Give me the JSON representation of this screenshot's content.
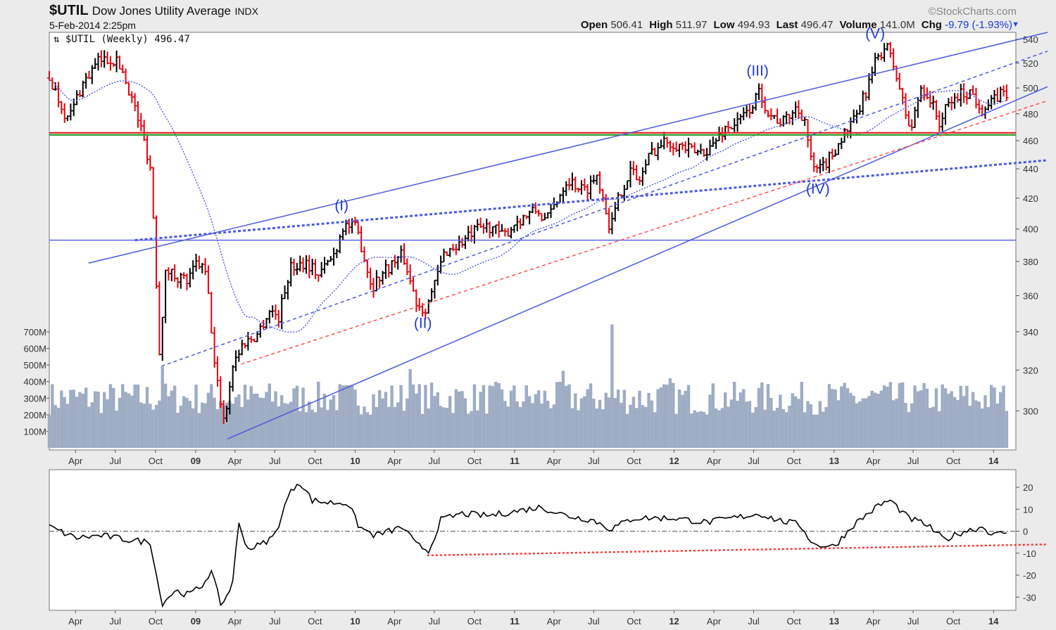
{
  "header": {
    "symbol": "$UTIL",
    "name": "Dow Jones Utility Average",
    "exchange": "INDX",
    "datetime": "5-Feb-2014 2:25pm",
    "brand": "©StockCharts.com",
    "open_label": "Open",
    "open": "506.41",
    "high_label": "High",
    "high": "511.97",
    "low_label": "Low",
    "low": "494.93",
    "last_label": "Last",
    "last": "496.47",
    "volume_label": "Volume",
    "volume": "141.0M",
    "chg_label": "Chg",
    "chg": "-9.79 (-1.93%)",
    "chg_arrow": "▼"
  },
  "colors": {
    "background": "#ebebeb",
    "plot": "#ffffff",
    "up_bar": "#000000",
    "down_bar": "#e8000b",
    "volume": "#9eacc4",
    "trendline": "#4b5ae0",
    "support_red": "#ff5050",
    "support_green": "#2ca02c"
  },
  "chart_data": [
    {
      "type": "candlestick",
      "legend": "$UTIL (Weekly) 496.47",
      "ylim": [
        282,
        546
      ],
      "y_scale": "log",
      "y_ticks": [
        300,
        320,
        340,
        360,
        380,
        400,
        420,
        440,
        460,
        480,
        500,
        520,
        540
      ],
      "x_ticks": [
        "Apr",
        "Jul",
        "Oct",
        "09",
        "Apr",
        "Jul",
        "Oct",
        "10",
        "Apr",
        "Jul",
        "Oct",
        "11",
        "Apr",
        "Jul",
        "Oct",
        "12",
        "Apr",
        "Jul",
        "Oct",
        "13",
        "Apr",
        "Jul",
        "Oct",
        "14"
      ],
      "x_tick_dates": [
        "2008-04",
        "2008-07",
        "2008-10",
        "2009-01",
        "2009-04",
        "2009-07",
        "2009-10",
        "2010-01",
        "2010-04",
        "2010-07",
        "2010-10",
        "2011-01",
        "2011-04",
        "2011-07",
        "2011-10",
        "2012-01",
        "2012-04",
        "2012-07",
        "2012-10",
        "2013-01",
        "2013-04",
        "2013-07",
        "2013-10",
        "2014-01"
      ],
      "x_range": [
        "2008-02-01",
        "2014-02-05"
      ],
      "price_path": [
        [
          "2008-02-01",
          508
        ],
        [
          "2008-03-15",
          475
        ],
        [
          "2008-04-15",
          502
        ],
        [
          "2008-05-25",
          522
        ],
        [
          "2008-06-25",
          524
        ],
        [
          "2008-07-15",
          516
        ],
        [
          "2008-08-05",
          495
        ],
        [
          "2008-09-01",
          465
        ],
        [
          "2008-09-20",
          440
        ],
        [
          "2008-10-10",
          330
        ],
        [
          "2008-10-25",
          375
        ],
        [
          "2008-11-15",
          372
        ],
        [
          "2008-12-15",
          368
        ],
        [
          "2009-01-05",
          380
        ],
        [
          "2009-01-25",
          372
        ],
        [
          "2009-02-15",
          318
        ],
        [
          "2009-03-09",
          294
        ],
        [
          "2009-03-25",
          322
        ],
        [
          "2009-04-20",
          334
        ],
        [
          "2009-05-20",
          338
        ],
        [
          "2009-06-20",
          352
        ],
        [
          "2009-07-10",
          348
        ],
        [
          "2009-08-05",
          376
        ],
        [
          "2009-09-10",
          380
        ],
        [
          "2009-10-10",
          372
        ],
        [
          "2009-11-15",
          385
        ],
        [
          "2009-12-05",
          403
        ],
        [
          "2010-01-05",
          400
        ],
        [
          "2010-02-08",
          365
        ],
        [
          "2010-03-10",
          375
        ],
        [
          "2010-04-20",
          384
        ],
        [
          "2010-05-20",
          357
        ],
        [
          "2010-06-08",
          352
        ],
        [
          "2010-06-28",
          363
        ],
        [
          "2010-07-25",
          386
        ],
        [
          "2010-08-25",
          390
        ],
        [
          "2010-10-10",
          400
        ],
        [
          "2010-11-08",
          402
        ],
        [
          "2010-12-05",
          395
        ],
        [
          "2011-01-05",
          405
        ],
        [
          "2011-02-20",
          412
        ],
        [
          "2011-03-15",
          405
        ],
        [
          "2011-05-01",
          433
        ],
        [
          "2011-06-10",
          425
        ],
        [
          "2011-07-10",
          436
        ],
        [
          "2011-08-08",
          400
        ],
        [
          "2011-09-01",
          425
        ],
        [
          "2011-09-25",
          440
        ],
        [
          "2011-10-10",
          430
        ],
        [
          "2011-11-10",
          452
        ],
        [
          "2011-12-15",
          460
        ],
        [
          "2012-01-10",
          457
        ],
        [
          "2012-02-20",
          451
        ],
        [
          "2012-03-25",
          455
        ],
        [
          "2012-04-25",
          469
        ],
        [
          "2012-05-25",
          473
        ],
        [
          "2012-06-25",
          485
        ],
        [
          "2012-07-15",
          497
        ],
        [
          "2012-08-05",
          480
        ],
        [
          "2012-09-05",
          473
        ],
        [
          "2012-10-05",
          484
        ],
        [
          "2012-10-25",
          478
        ],
        [
          "2012-11-10",
          443
        ],
        [
          "2012-11-25",
          437
        ],
        [
          "2012-12-25",
          449
        ],
        [
          "2013-01-20",
          463
        ],
        [
          "2013-02-20",
          476
        ],
        [
          "2013-03-20",
          502
        ],
        [
          "2013-04-10",
          525
        ],
        [
          "2013-04-30",
          535
        ],
        [
          "2013-05-20",
          515
        ],
        [
          "2013-06-10",
          485
        ],
        [
          "2013-06-25",
          466
        ],
        [
          "2013-07-20",
          502
        ],
        [
          "2013-08-10",
          490
        ],
        [
          "2013-08-30",
          473
        ],
        [
          "2013-09-20",
          487
        ],
        [
          "2013-10-15",
          495
        ],
        [
          "2013-11-10",
          497
        ],
        [
          "2013-12-05",
          484
        ],
        [
          "2013-12-25",
          487
        ],
        [
          "2014-01-20",
          497
        ],
        [
          "2014-02-05",
          496
        ]
      ],
      "wave_labels": [
        {
          "text": "(I)",
          "date": "2009-12-01",
          "price": 412
        },
        {
          "text": "(II)",
          "date": "2010-06-05",
          "price": 342
        },
        {
          "text": "(III)",
          "date": "2012-07-10",
          "price": 510
        },
        {
          "text": "(IV)",
          "date": "2012-11-25",
          "price": 423
        },
        {
          "text": "(V)",
          "date": "2013-04-05",
          "price": 541
        }
      ],
      "horizontal_lines": [
        {
          "price": 465,
          "color": "#e03030"
        },
        {
          "price": 465,
          "color": "#2ca02c"
        },
        {
          "price": 393,
          "color": "#4b5ae0"
        }
      ],
      "trendlines": [
        {
          "from": [
            "2008-05-01",
            379
          ],
          "to": [
            "2014-02-05",
            546
          ],
          "style": "solid"
        },
        {
          "from": [
            "2009-03-15",
            287
          ],
          "to": [
            "2014-02-05",
            501
          ],
          "style": "solid"
        },
        {
          "from": [
            "2008-10-15",
            322
          ],
          "to": [
            "2014-02-05",
            530
          ],
          "style": "dashed"
        },
        {
          "from": [
            "2008-08-15",
            393
          ],
          "to": [
            "2014-02-05",
            446
          ],
          "style": "dotted-thick"
        },
        {
          "from": [
            "2009-04-15",
            323
          ],
          "to": [
            "2014-02-05",
            490
          ],
          "style": "red-dashed"
        }
      ],
      "moving_average": "30-week (blue dotted)"
    },
    {
      "type": "bar",
      "series_name": "Volume",
      "y_ticks": [
        "100M",
        "200M",
        "300M",
        "400M",
        "500M",
        "600M",
        "700M"
      ],
      "y_tick_values": [
        100,
        200,
        300,
        400,
        500,
        600,
        700
      ],
      "typical_range_M": [
        200,
        400
      ],
      "peaks_M": [
        {
          "date": "2008-10-15",
          "value": 490
        },
        {
          "date": "2010-05-10",
          "value": 475
        },
        {
          "date": "2011-04-25",
          "value": 465
        },
        {
          "date": "2011-08-10",
          "value": 745
        },
        {
          "date": "2011-12-20",
          "value": 420
        }
      ]
    },
    {
      "type": "line",
      "series_name": "Momentum oscillator",
      "ylim": [
        -36,
        28
      ],
      "y_ticks": [
        20,
        10,
        0,
        -10,
        -20,
        -30
      ],
      "values_path": [
        [
          "2008-02-01",
          2
        ],
        [
          "2008-04-01",
          -3
        ],
        [
          "2008-06-01",
          -2
        ],
        [
          "2008-08-01",
          -4
        ],
        [
          "2008-09-20",
          -5
        ],
        [
          "2008-10-15",
          -33
        ],
        [
          "2008-11-15",
          -27
        ],
        [
          "2008-12-15",
          -29
        ],
        [
          "2009-01-15",
          -25
        ],
        [
          "2009-02-05",
          -18
        ],
        [
          "2009-03-01",
          -34
        ],
        [
          "2009-03-25",
          -25
        ],
        [
          "2009-04-10",
          3
        ],
        [
          "2009-05-01",
          -8
        ],
        [
          "2009-06-01",
          -6
        ],
        [
          "2009-07-01",
          -2
        ],
        [
          "2009-08-01",
          16
        ],
        [
          "2009-08-25",
          23
        ],
        [
          "2009-09-25",
          14
        ],
        [
          "2009-11-01",
          13
        ],
        [
          "2009-12-15",
          13
        ],
        [
          "2010-01-10",
          2
        ],
        [
          "2010-02-15",
          -2
        ],
        [
          "2010-03-20",
          0
        ],
        [
          "2010-04-20",
          2
        ],
        [
          "2010-05-20",
          -6
        ],
        [
          "2010-06-20",
          -9
        ],
        [
          "2010-07-15",
          5
        ],
        [
          "2010-09-01",
          8
        ],
        [
          "2010-11-01",
          7
        ],
        [
          "2011-01-01",
          9
        ],
        [
          "2011-03-01",
          11
        ],
        [
          "2011-05-01",
          7
        ],
        [
          "2011-07-01",
          5
        ],
        [
          "2011-08-08",
          1
        ],
        [
          "2011-10-01",
          6
        ],
        [
          "2012-01-01",
          6
        ],
        [
          "2012-03-15",
          4
        ],
        [
          "2012-05-15",
          6
        ],
        [
          "2012-07-15",
          8
        ],
        [
          "2012-08-25",
          5
        ],
        [
          "2012-10-15",
          3
        ],
        [
          "2012-11-15",
          -6
        ],
        [
          "2013-01-01",
          -7
        ],
        [
          "2013-02-15",
          3
        ],
        [
          "2013-04-15",
          12
        ],
        [
          "2013-05-10",
          14
        ],
        [
          "2013-06-20",
          6
        ],
        [
          "2013-08-01",
          3
        ],
        [
          "2013-09-10",
          -4
        ],
        [
          "2013-10-25",
          0
        ],
        [
          "2013-12-10",
          2
        ],
        [
          "2013-12-30",
          -2
        ],
        [
          "2014-02-05",
          0
        ]
      ],
      "support_line": {
        "from": [
          "2010-06-15",
          -11
        ],
        "to": [
          "2014-02-05",
          -6
        ],
        "color": "#ff3030"
      }
    }
  ]
}
